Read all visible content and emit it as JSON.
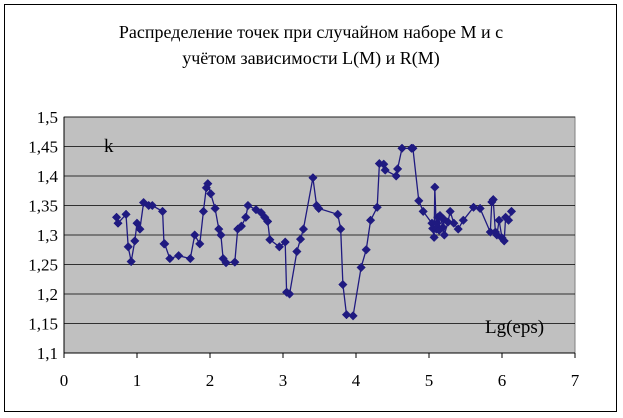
{
  "chart_data": {
    "type": "line",
    "title_lines": [
      "Распределение точек при случайном наборе М и с",
      "учётом зависимости L(M) и R(M)"
    ],
    "xlabel": "Lg(eps)",
    "ylabel": "k",
    "xlim": [
      0,
      7
    ],
    "ylim": [
      1.1,
      1.5
    ],
    "x_ticks": [
      "0",
      "1",
      "2",
      "3",
      "4",
      "5",
      "6",
      "7"
    ],
    "y_ticks": [
      "1,1",
      "1,15",
      "1,2",
      "1,25",
      "1,3",
      "1,35",
      "1,4",
      "1,45",
      "1,5"
    ],
    "grid": "horizontal",
    "plot_background": "#c0c0c0",
    "series_color": "#1f1a80",
    "marker": "diamond",
    "series": [
      {
        "x": [
          0.72,
          0.74,
          0.85,
          0.88,
          0.92,
          0.97,
          1.0,
          1.04,
          1.09,
          1.16,
          1.21,
          1.35,
          1.37,
          1.38,
          1.45,
          1.57,
          1.73,
          1.79,
          1.86,
          1.91,
          1.95,
          1.97,
          2.01,
          2.07,
          2.12,
          2.15,
          2.18,
          2.22,
          2.34,
          2.38,
          2.43,
          2.49,
          2.52,
          2.63,
          2.7,
          2.75,
          2.79,
          2.82,
          2.95,
          3.03,
          3.05,
          3.09,
          3.19,
          3.24,
          3.28,
          3.41,
          3.46,
          3.49,
          3.75,
          3.79,
          3.82,
          3.87,
          3.96,
          4.07,
          4.14,
          4.2,
          4.29,
          4.32,
          4.38,
          4.4,
          4.55,
          4.57,
          4.63,
          4.76,
          4.78,
          4.86,
          4.92,
          5.04,
          5.05,
          5.07,
          5.08,
          5.1,
          5.11,
          5.12,
          5.14,
          5.15,
          5.19,
          5.2,
          5.21,
          5.26,
          5.29,
          5.34,
          5.4,
          5.47,
          5.61,
          5.7,
          5.84,
          5.86,
          5.88,
          5.91,
          5.93,
          5.96,
          6.0,
          6.03,
          6.05,
          6.09,
          6.13
        ],
        "y": [
          1.33,
          1.32,
          1.335,
          1.28,
          1.255,
          1.29,
          1.32,
          1.31,
          1.355,
          1.35,
          1.35,
          1.34,
          1.285,
          1.285,
          1.26,
          1.265,
          1.26,
          1.3,
          1.285,
          1.34,
          1.38,
          1.387,
          1.37,
          1.345,
          1.31,
          1.3,
          1.26,
          1.253,
          1.254,
          1.31,
          1.315,
          1.33,
          1.35,
          1.343,
          1.338,
          1.33,
          1.323,
          1.292,
          1.28,
          1.288,
          1.203,
          1.2,
          1.272,
          1.293,
          1.31,
          1.397,
          1.35,
          1.345,
          1.335,
          1.31,
          1.216,
          1.165,
          1.163,
          1.245,
          1.275,
          1.325,
          1.347,
          1.421,
          1.42,
          1.41,
          1.4,
          1.412,
          1.447,
          1.447,
          1.447,
          1.358,
          1.34,
          1.32,
          1.311,
          1.296,
          1.381,
          1.31,
          1.32,
          1.33,
          1.308,
          1.333,
          1.313,
          1.327,
          1.3,
          1.322,
          1.34,
          1.32,
          1.31,
          1.325,
          1.347,
          1.345,
          1.305,
          1.356,
          1.36,
          1.305,
          1.3,
          1.325,
          1.295,
          1.29,
          1.33,
          1.325,
          1.34
        ]
      }
    ]
  }
}
